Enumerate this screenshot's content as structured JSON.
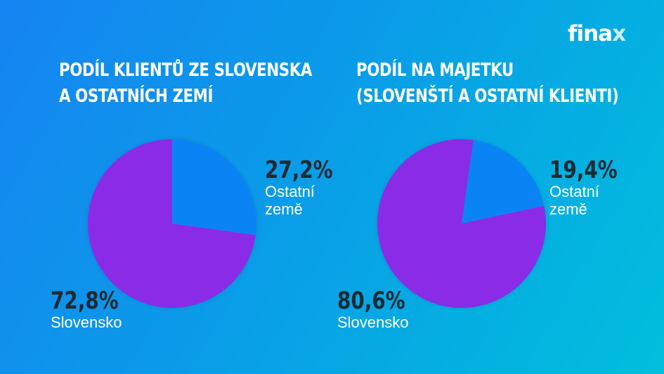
{
  "logo": {
    "text_main": "fina",
    "text_accent": "x"
  },
  "left_chart": {
    "title_line1": "PODÍL KLIENTŮ ZE SLOVENSKA",
    "title_line2": "A OSTATNÍCH ZEMÍ",
    "other": {
      "pct": "27,2%",
      "name_line1": "Ostatní",
      "name_line2": "země"
    },
    "slovakia": {
      "pct": "72,8%",
      "name": "Slovensko"
    }
  },
  "right_chart": {
    "title_line1": "PODÍL NA MAJETKU",
    "title_line2": "(SLOVENŠTÍ A OSTATNÍ KLIENTI)",
    "other": {
      "pct": "19,4%",
      "name_line1": "Ostatní",
      "name_line2": "země"
    },
    "slovakia": {
      "pct": "80,6%",
      "name": "Slovensko"
    }
  },
  "colors": {
    "slovakia": "#8a2be8",
    "other": "#0a84f5",
    "bg_start": "#1684f2",
    "bg_end": "#00bfdc",
    "pct_text": "#1e2a33"
  },
  "chart_data": [
    {
      "type": "pie",
      "title": "Podíl klientů ze Slovenska a ostatních zemí",
      "categories": [
        "Ostatní země",
        "Slovensko"
      ],
      "values": [
        27.2,
        72.8
      ],
      "colors": [
        "#0a84f5",
        "#8a2be8"
      ]
    },
    {
      "type": "pie",
      "title": "Podíl na majetku (slovenští a ostatní klienti)",
      "categories": [
        "Ostatní země",
        "Slovensko"
      ],
      "values": [
        19.4,
        80.6
      ],
      "colors": [
        "#0a84f5",
        "#8a2be8"
      ]
    }
  ]
}
